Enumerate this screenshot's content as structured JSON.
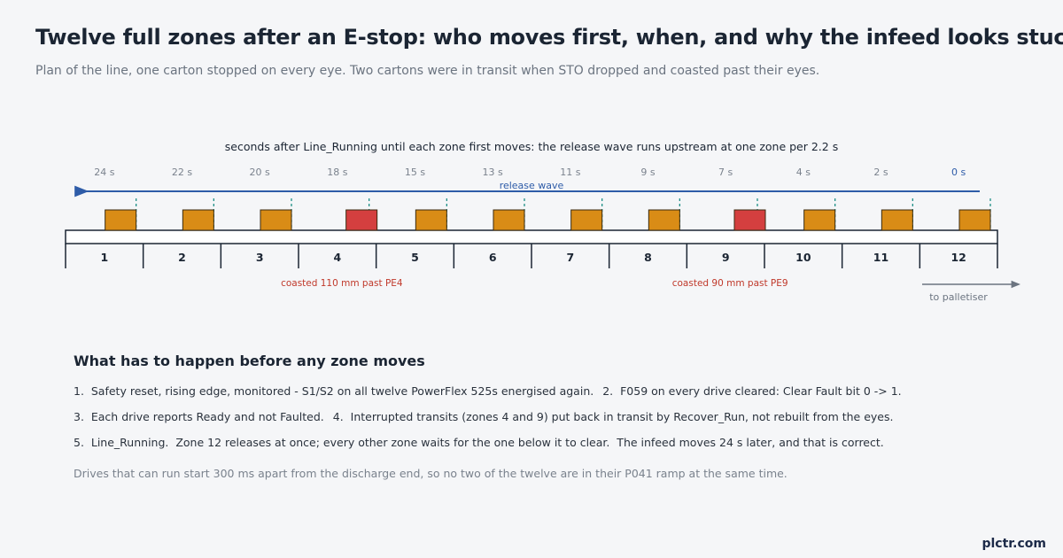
{
  "title": "Twelve full zones after an E-stop: who moves first, when, and why the infeed looks stuck",
  "subtitle": "Plan of the line, one carton stopped on every eye. Two cartons were in transit when STO dropped and coasted past their eyes.",
  "diagram": {
    "caption": "seconds after Line_Running until each zone first moves: the release wave runs upstream at one zone per 2.2 s",
    "release_wave_label": "release wave",
    "flow_label": "to palletiser",
    "zones": [
      {
        "number": "1",
        "time": "24 s",
        "carton": "stopped"
      },
      {
        "number": "2",
        "time": "22 s",
        "carton": "stopped"
      },
      {
        "number": "3",
        "time": "20 s",
        "carton": "stopped"
      },
      {
        "number": "4",
        "time": "18 s",
        "carton": "coasted",
        "coast_label": "coasted 110 mm past PE4"
      },
      {
        "number": "5",
        "time": "15 s",
        "carton": "stopped"
      },
      {
        "number": "6",
        "time": "13 s",
        "carton": "stopped"
      },
      {
        "number": "7",
        "time": "11 s",
        "carton": "stopped"
      },
      {
        "number": "8",
        "time": "9 s",
        "carton": "stopped"
      },
      {
        "number": "9",
        "time": "7 s",
        "carton": "coasted",
        "coast_label": "coasted 90 mm past PE9"
      },
      {
        "number": "10",
        "time": "4 s",
        "carton": "stopped"
      },
      {
        "number": "11",
        "time": "2 s",
        "carton": "stopped"
      },
      {
        "number": "12",
        "time": "0 s",
        "carton": "stopped",
        "first": true
      }
    ],
    "colors": {
      "stopped_carton": "#d98c16",
      "coasted_carton": "#d43f3f",
      "photo_eye": "#1f8f86",
      "wave": "#2e5ca8",
      "coast_text": "#c0392b",
      "flow_arrow": "#6b7480"
    }
  },
  "steps": {
    "heading": "What has to happen before any zone moves",
    "lines": [
      [
        "1.  Safety reset, rising edge, monitored - S1/S2 on all twelve PowerFlex 525s energised again.",
        "2.  F059 on every drive cleared: Clear Fault bit 0 -> 1."
      ],
      [
        "3.  Each drive reports Ready and not Faulted.",
        "4.  Interrupted transits (zones 4 and 9) put back in transit by Recover_Run, not rebuilt from the eyes."
      ],
      [
        "5.  Line_Running.  Zone 12 releases at once; every other zone waits for the one below it to clear.  The infeed moves 24 s later, and that is correct."
      ]
    ]
  },
  "note": "Drives that can run start 300 ms apart from the discharge end, so no two of the twelve are in their P041 ramp at the same time.",
  "brand": "plctr.com"
}
